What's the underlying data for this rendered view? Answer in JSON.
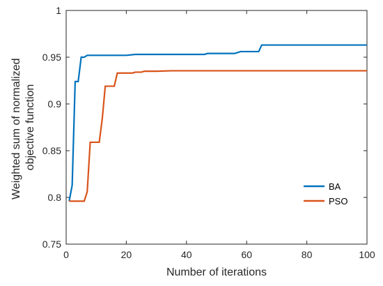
{
  "chart_data": {
    "type": "line",
    "title": "",
    "xlabel": "Number of iterations",
    "ylabel_lines": [
      "Weighted sum of normalized",
      "objective function"
    ],
    "xlim": [
      0,
      100
    ],
    "ylim": [
      0.75,
      1
    ],
    "xticks": [
      0,
      20,
      40,
      60,
      80,
      100
    ],
    "xtick_labels": [
      "0",
      "20",
      "40",
      "60",
      "80",
      "100"
    ],
    "yticks": [
      0.75,
      0.8,
      0.85,
      0.9,
      0.95,
      1
    ],
    "ytick_labels": [
      "0.75",
      "0.8",
      "0.85",
      "0.9",
      "0.95",
      "1"
    ],
    "grid": false,
    "legend_position": "lower-right",
    "series": [
      {
        "name": "BA",
        "color": "#0072BD",
        "x": [
          1,
          2,
          3,
          4,
          5,
          6,
          7,
          20,
          23,
          46,
          47,
          56,
          58,
          64,
          65,
          100
        ],
        "y": [
          0.796,
          0.813,
          0.924,
          0.924,
          0.95,
          0.95,
          0.952,
          0.952,
          0.953,
          0.953,
          0.954,
          0.954,
          0.956,
          0.956,
          0.963,
          0.963
        ]
      },
      {
        "name": "PSO",
        "color": "#D95319",
        "x": [
          1,
          6,
          7,
          8,
          11,
          12,
          13,
          16,
          17,
          22,
          23,
          25,
          26,
          30,
          35,
          100
        ],
        "y": [
          0.796,
          0.796,
          0.806,
          0.859,
          0.859,
          0.884,
          0.919,
          0.919,
          0.933,
          0.933,
          0.934,
          0.934,
          0.935,
          0.935,
          0.9355,
          0.9355
        ]
      }
    ]
  }
}
